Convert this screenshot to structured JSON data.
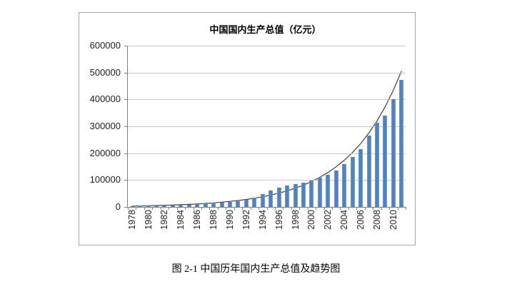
{
  "figure": {
    "caption": "图 2-1 中国历年国内生产总值及趋势图"
  },
  "chart_data": {
    "type": "bar",
    "title": "中国国内生产总值（亿元）",
    "xlabel": "",
    "ylabel": "",
    "categories": [
      1978,
      1979,
      1980,
      1981,
      1982,
      1983,
      1984,
      1985,
      1986,
      1987,
      1988,
      1989,
      1990,
      1991,
      1992,
      1993,
      1994,
      1995,
      1996,
      1997,
      1998,
      1999,
      2000,
      2001,
      2002,
      2003,
      2004,
      2005,
      2006,
      2007,
      2008,
      2009,
      2010,
      2011
    ],
    "values": [
      3645,
      4063,
      4546,
      4892,
      5323,
      5963,
      7208,
      9016,
      10275,
      12059,
      15043,
      16992,
      18668,
      21782,
      26924,
      35334,
      48198,
      60794,
      71177,
      78973,
      84402,
      89677,
      99215,
      109655,
      120333,
      135823,
      159878,
      184937,
      216314,
      265810,
      314045,
      340903,
      401513,
      472882
    ],
    "trend_line_values": [
      3303,
      3847,
      4481,
      5219,
      6078,
      7079,
      8245,
      9602,
      11184,
      13026,
      15171,
      17670,
      20581,
      23971,
      27919,
      32517,
      37873,
      44110,
      51375,
      59837,
      69692,
      81170,
      94539,
      110110,
      128244,
      149366,
      173967,
      202620,
      235992,
      274858,
      320128,
      372852,
      434262,
      505784
    ],
    "ylim": [
      0,
      600000
    ],
    "ytick_step": 100000,
    "ytick_labels": [
      "0",
      "100000",
      "200000",
      "300000",
      "400000",
      "500000",
      "600000"
    ],
    "xtick_label_every": 2,
    "grid": true,
    "legend": "none",
    "bar_color": "#4F81BD",
    "trend_color": "#3F3F3F",
    "gridline_color": "#C9C9C9",
    "axis_color": "#808080"
  }
}
